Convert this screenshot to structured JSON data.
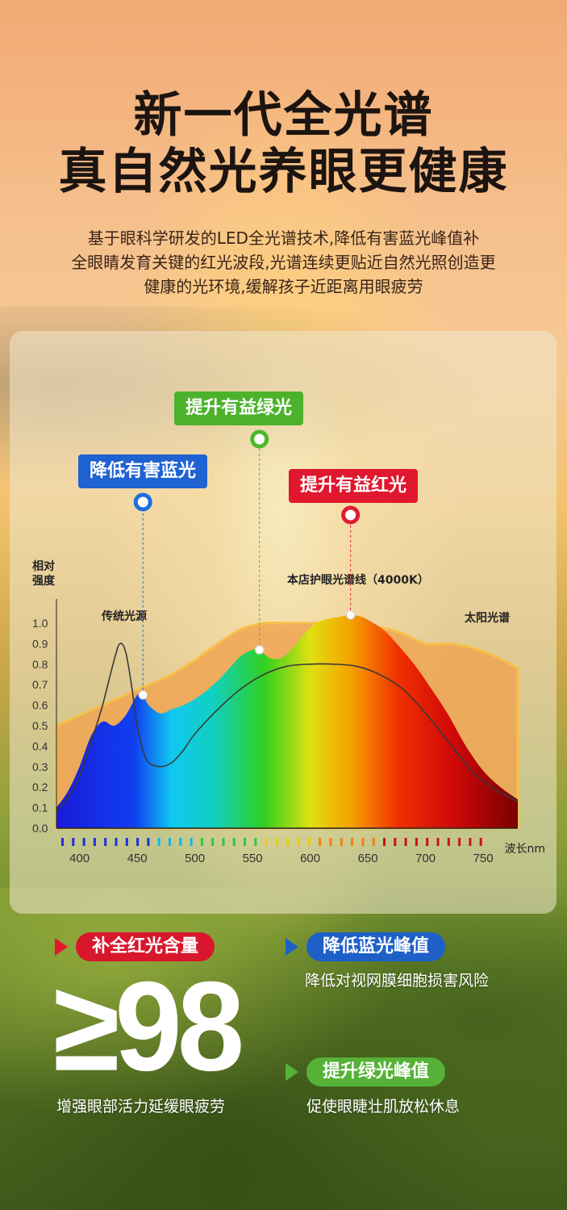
{
  "header": {
    "title_line1": "新一代全光谱",
    "title_line2": "真自然光养眼更健康",
    "desc_lines": [
      "基于眼科学研发的LED全光谱技术,降低有害蓝光峰值补",
      "全眼睛发育关键的红光波段,光谱连续更贴近自然光照创造更",
      "健康的光环境,缓解孩子近距离用眼疲劳"
    ]
  },
  "callouts": {
    "blue": "降低有害蓝光",
    "green": "提升有益绿光",
    "red": "提升有益红光"
  },
  "chart_data": {
    "type": "area",
    "ylabel_line1": "相对",
    "ylabel_line2": "强度",
    "xlabel": "波长nm",
    "y_ticks": [
      "0.0",
      "0.1",
      "0.2",
      "0.3",
      "0.4",
      "0.5",
      "0.6",
      "0.7",
      "0.8",
      "0.9",
      "1.0"
    ],
    "x_ticks": [
      "400",
      "450",
      "500",
      "550",
      "600",
      "650",
      "700",
      "750"
    ],
    "ylim": [
      0,
      1.0
    ],
    "xlim": [
      380,
      780
    ],
    "grid": false,
    "annotations": {
      "traditional": "传统光源",
      "store": "本店护眼光谱线（4000K）",
      "sun": "太阳光谱"
    },
    "series": [
      {
        "name": "太阳光谱",
        "x": [
          380,
          400,
          420,
          440,
          460,
          480,
          500,
          520,
          540,
          560,
          580,
          600,
          620,
          640,
          660,
          680,
          700,
          720,
          740,
          760,
          780
        ],
        "y": [
          0.5,
          0.55,
          0.6,
          0.65,
          0.7,
          0.75,
          0.82,
          0.9,
          0.97,
          1.0,
          1.0,
          1.0,
          1.0,
          0.99,
          0.98,
          0.95,
          0.9,
          0.9,
          0.88,
          0.84,
          0.78
        ]
      },
      {
        "name": "本店护眼光谱线（4000K）",
        "x": [
          380,
          390,
          400,
          410,
          420,
          430,
          440,
          450,
          455,
          460,
          470,
          480,
          490,
          500,
          510,
          520,
          530,
          540,
          550,
          556,
          565,
          575,
          585,
          595,
          605,
          615,
          625,
          635,
          645,
          655,
          665,
          675,
          690,
          705,
          720,
          735,
          750,
          765,
          780
        ],
        "y": [
          0.1,
          0.18,
          0.3,
          0.45,
          0.52,
          0.5,
          0.55,
          0.65,
          0.65,
          0.6,
          0.56,
          0.58,
          0.6,
          0.63,
          0.67,
          0.72,
          0.78,
          0.84,
          0.87,
          0.87,
          0.83,
          0.83,
          0.88,
          0.95,
          1.0,
          1.02,
          1.03,
          1.04,
          1.03,
          1.0,
          0.96,
          0.9,
          0.8,
          0.68,
          0.55,
          0.4,
          0.28,
          0.2,
          0.14
        ]
      },
      {
        "name": "传统光源",
        "x": [
          380,
          390,
          400,
          410,
          420,
          430,
          435,
          440,
          445,
          450,
          455,
          460,
          470,
          480,
          490,
          500,
          520,
          540,
          560,
          580,
          600,
          620,
          640,
          660,
          680,
          700,
          720,
          740,
          760,
          780
        ],
        "y": [
          0.08,
          0.15,
          0.25,
          0.42,
          0.6,
          0.82,
          0.9,
          0.86,
          0.7,
          0.5,
          0.38,
          0.32,
          0.3,
          0.32,
          0.38,
          0.46,
          0.58,
          0.68,
          0.75,
          0.79,
          0.8,
          0.8,
          0.79,
          0.75,
          0.68,
          0.56,
          0.42,
          0.28,
          0.19,
          0.13
        ]
      }
    ],
    "markers": [
      {
        "series": "本店护眼光谱线（4000K）",
        "x": 455,
        "y": 0.65,
        "callout": "blue",
        "color": "#1e6fe0"
      },
      {
        "series": "本店护眼光谱线（4000K）",
        "x": 556,
        "y": 0.87,
        "callout": "green",
        "color": "#4bb82c"
      },
      {
        "series": "本店护眼光谱线（4000K）",
        "x": 635,
        "y": 1.04,
        "callout": "red",
        "color": "#e01c32"
      }
    ]
  },
  "bottom": {
    "red_pill": "补全红光含量",
    "blue_pill": "降低蓝光峰值",
    "green_pill": "提升绿光峰值",
    "big_value": "≥98",
    "red_sub": "增强眼部活力延缓眼疲劳",
    "blue_sub": "降低对视网膜细胞损害风险",
    "green_sub": "促使眼睫壮肌放松休息"
  },
  "colors": {
    "red": "#e0172e",
    "blue": "#1f5fc8",
    "green": "#56b236",
    "sun_fill": "#f0a050",
    "title": "#1c1410"
  }
}
